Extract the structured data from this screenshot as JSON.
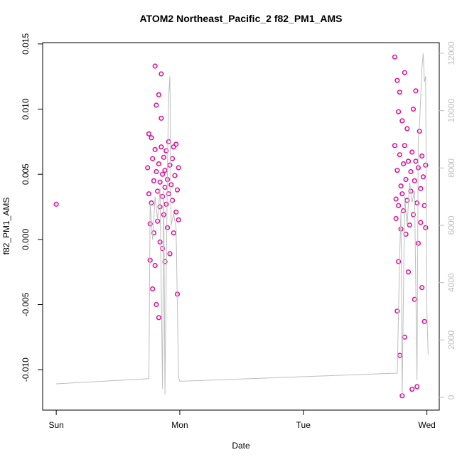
{
  "chart_data": {
    "type": "scatter",
    "title": "ATOM2 Northeast_Pacific_2 f82_PM1_AMS",
    "x_label": "Date",
    "y_label": "f82_PM1_AMS",
    "xlim": [
      -0.11,
      3.1
    ],
    "xticks": [
      {
        "value": 0,
        "label": "Sun"
      },
      {
        "value": 1,
        "label": "Mon"
      },
      {
        "value": 2,
        "label": "Tue"
      },
      {
        "value": 3,
        "label": "Wed"
      }
    ],
    "ylim": [
      -0.0131,
      0.0151
    ],
    "yticks": [
      {
        "value": -0.01,
        "label": "-0.010"
      },
      -0.005,
      {
        "value": 0,
        "label": "0.000"
      },
      0.005,
      {
        "value": 0.01,
        "label": "0.010"
      },
      0.015
    ],
    "y2lim": [
      -446,
      12371
    ],
    "y2ticks": [
      0,
      2000,
      4000,
      6000,
      8000,
      10000,
      12000
    ],
    "series": [
      {
        "type": "scatter",
        "color": "#e0139a",
        "x": [
          0,
          0.74,
          0.75,
          0.75,
          0.76,
          0.76,
          0.77,
          0.77,
          0.78,
          0.78,
          0.79,
          0.79,
          0.8,
          0.8,
          0.8,
          0.81,
          0.81,
          0.81,
          0.82,
          0.82,
          0.83,
          0.83,
          0.83,
          0.84,
          0.84,
          0.84,
          0.85,
          0.85,
          0.85,
          0.86,
          0.86,
          0.86,
          0.87,
          0.87,
          0.88,
          0.88,
          0.88,
          0.89,
          0.89,
          0.9,
          0.9,
          0.91,
          0.91,
          0.92,
          0.92,
          0.93,
          0.94,
          0.94,
          0.95,
          0.95,
          0.96,
          0.97,
          0.97,
          0.98,
          0.98,
          0.99,
          0.99,
          2.74,
          2.74,
          2.75,
          2.75,
          2.76,
          2.76,
          2.76,
          2.77,
          2.77,
          2.77,
          2.78,
          2.78,
          2.78,
          2.79,
          2.79,
          2.8,
          2.8,
          2.8,
          2.81,
          2.81,
          2.82,
          2.82,
          2.82,
          2.83,
          2.83,
          2.84,
          2.84,
          2.85,
          2.85,
          2.86,
          2.87,
          2.87,
          2.88,
          2.88,
          2.89,
          2.89,
          2.9,
          2.9,
          2.91,
          2.91,
          2.92,
          2.92,
          2.93,
          2.93,
          2.94,
          2.95,
          2.95,
          2.96,
          2.96,
          2.97,
          2.98,
          2.98,
          2.99,
          2.99
        ],
        "values": [
          0.0027,
          0.0055,
          0.0081,
          0.0035,
          0.0012,
          -0.0016,
          0.0078,
          0.0028,
          0.0062,
          -0.0038,
          0.0045,
          0.0005,
          0.0133,
          0.0069,
          -0.002,
          0.0052,
          0.0103,
          -0.005,
          0.0037,
          0.0014,
          0.0111,
          0.0058,
          -0.006,
          0.0044,
          0.0025,
          -0.0002,
          0.0127,
          0.0071,
          0.0093,
          0.005,
          0.0033,
          -0.0007,
          0.0063,
          0.0019,
          0.0053,
          0.004,
          -0.0017,
          0.0068,
          0.0027,
          0.0046,
          0.0009,
          0.0075,
          0.0035,
          0.0057,
          -0.0011,
          0.0042,
          0.0062,
          0.003,
          0.0071,
          0.0005,
          0.0049,
          0.0073,
          0.0021,
          0.0038,
          -0.0042,
          0.0015,
          0.0055,
          0.014,
          0.0072,
          0.0031,
          0.0016,
          0.0122,
          0.0053,
          -0.0055,
          0.0098,
          0.0026,
          -0.0017,
          0.0113,
          0.0065,
          -0.0089,
          0.0041,
          0.0008,
          0.0091,
          0.0035,
          -0.012,
          0.0058,
          0.0022,
          0.0128,
          0.0072,
          -0.0075,
          0.0046,
          0.0004,
          0.0085,
          0.003,
          0.006,
          -0.0025,
          0.0011,
          0.0052,
          0.0037,
          -0.0115,
          0.0067,
          0.01,
          0.0019,
          0.0045,
          -0.0046,
          0.0114,
          0.006,
          -0.0113,
          0.0028,
          0.0055,
          -0.0003,
          0.0083,
          0.0039,
          0.0013,
          0.0064,
          -0.0037,
          0.0048,
          0.0026,
          -0.0063,
          0.0057,
          0.0009
        ]
      },
      {
        "type": "line",
        "axis": "y2",
        "color": "#bebebe",
        "x": [
          0,
          0.75,
          0.76,
          0.78,
          0.8,
          0.82,
          0.84,
          0.86,
          0.87,
          0.88,
          0.9,
          0.91,
          0.92,
          0.93,
          0.95,
          0.97,
          0.99,
          1.0,
          2.76,
          2.78,
          2.79,
          2.8,
          2.82,
          2.84,
          2.86,
          2.88,
          2.9,
          2.92,
          2.93,
          2.94,
          2.96,
          2.97,
          2.98,
          2.99,
          3.0,
          3.01
        ],
        "values": [
          471,
          650,
          6800,
          5500,
          7000,
          6200,
          7300,
          300,
          7200,
          100,
          8000,
          10500,
          11200,
          6000,
          6400,
          5900,
          700,
          560,
          843,
          5000,
          6500,
          100,
          7000,
          6000,
          7500,
          6800,
          7200,
          600,
          9000,
          9500,
          11500,
          12000,
          11000,
          11200,
          3000,
          1500
        ]
      }
    ]
  }
}
